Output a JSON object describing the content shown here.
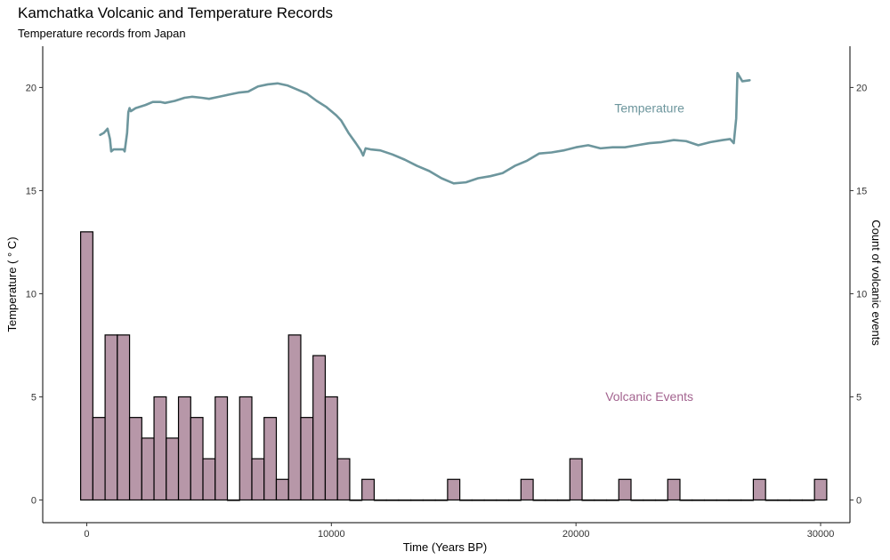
{
  "chart_data": {
    "type": "bar+line",
    "title": "Kamchatka  Volcanic and Temperature Records",
    "subtitle": "Temperature records from Japan",
    "xlabel": "Time (Years BP)",
    "ylabel_left": "Temperature ( ° C)",
    "ylabel_right": "Count of volcanic events",
    "xlim": [
      -1800,
      31200
    ],
    "ylim": [
      -1.1,
      22
    ],
    "x_ticks": [
      0,
      10000,
      20000,
      30000
    ],
    "y_ticks": [
      0,
      5,
      10,
      15,
      20
    ],
    "grid": false,
    "annotations": [
      {
        "text": "Temperature",
        "x": 23000,
        "y": 18.8,
        "color": "#6d969d"
      },
      {
        "text": "Volcanic Events",
        "x": 23000,
        "y": 4.8,
        "color": "#a3638f"
      }
    ],
    "bar_series": {
      "name": "Volcanic Events",
      "color": "#b797a8",
      "bin_width": 500,
      "bins": [
        {
          "x": 0,
          "count": 13
        },
        {
          "x": 500,
          "count": 4
        },
        {
          "x": 1000,
          "count": 8
        },
        {
          "x": 1500,
          "count": 8
        },
        {
          "x": 2000,
          "count": 4
        },
        {
          "x": 2500,
          "count": 3
        },
        {
          "x": 3000,
          "count": 5
        },
        {
          "x": 3500,
          "count": 3
        },
        {
          "x": 4000,
          "count": 5
        },
        {
          "x": 4500,
          "count": 4
        },
        {
          "x": 5000,
          "count": 2
        },
        {
          "x": 5500,
          "count": 5
        },
        {
          "x": 6000,
          "count": 0
        },
        {
          "x": 6500,
          "count": 5
        },
        {
          "x": 7000,
          "count": 2
        },
        {
          "x": 7500,
          "count": 4
        },
        {
          "x": 8000,
          "count": 1
        },
        {
          "x": 8500,
          "count": 8
        },
        {
          "x": 9000,
          "count": 4
        },
        {
          "x": 9500,
          "count": 7
        },
        {
          "x": 10000,
          "count": 5
        },
        {
          "x": 10500,
          "count": 2
        },
        {
          "x": 11000,
          "count": 0
        },
        {
          "x": 11500,
          "count": 1
        },
        {
          "x": 12000,
          "count": 0
        },
        {
          "x": 12500,
          "count": 0
        },
        {
          "x": 13000,
          "count": 0
        },
        {
          "x": 13500,
          "count": 0
        },
        {
          "x": 14000,
          "count": 0
        },
        {
          "x": 14500,
          "count": 0
        },
        {
          "x": 15000,
          "count": 1
        },
        {
          "x": 15500,
          "count": 0
        },
        {
          "x": 16000,
          "count": 0
        },
        {
          "x": 16500,
          "count": 0
        },
        {
          "x": 17000,
          "count": 0
        },
        {
          "x": 17500,
          "count": 0
        },
        {
          "x": 18000,
          "count": 1
        },
        {
          "x": 18500,
          "count": 0
        },
        {
          "x": 19000,
          "count": 0
        },
        {
          "x": 19500,
          "count": 0
        },
        {
          "x": 20000,
          "count": 2
        },
        {
          "x": 20500,
          "count": 0
        },
        {
          "x": 21000,
          "count": 0
        },
        {
          "x": 21500,
          "count": 0
        },
        {
          "x": 22000,
          "count": 1
        },
        {
          "x": 22500,
          "count": 0
        },
        {
          "x": 23000,
          "count": 0
        },
        {
          "x": 23500,
          "count": 0
        },
        {
          "x": 24000,
          "count": 1
        },
        {
          "x": 24500,
          "count": 0
        },
        {
          "x": 25000,
          "count": 0
        },
        {
          "x": 25500,
          "count": 0
        },
        {
          "x": 26000,
          "count": 0
        },
        {
          "x": 26500,
          "count": 0
        },
        {
          "x": 27000,
          "count": 0
        },
        {
          "x": 27500,
          "count": 1
        },
        {
          "x": 28000,
          "count": 0
        },
        {
          "x": 28500,
          "count": 0
        },
        {
          "x": 29000,
          "count": 0
        },
        {
          "x": 29500,
          "count": 0
        },
        {
          "x": 30000,
          "count": 1
        }
      ]
    },
    "line_series": {
      "name": "Temperature",
      "color": "#6d969d",
      "points": [
        [
          550,
          17.7
        ],
        [
          700,
          17.8
        ],
        [
          850,
          18.0
        ],
        [
          950,
          17.5
        ],
        [
          1000,
          16.9
        ],
        [
          1100,
          17.0
        ],
        [
          1300,
          17.0
        ],
        [
          1500,
          17.0
        ],
        [
          1550,
          16.9
        ],
        [
          1650,
          17.8
        ],
        [
          1700,
          18.8
        ],
        [
          1750,
          19.0
        ],
        [
          1800,
          18.85
        ],
        [
          2000,
          19.0
        ],
        [
          2400,
          19.15
        ],
        [
          2700,
          19.3
        ],
        [
          3000,
          19.3
        ],
        [
          3200,
          19.25
        ],
        [
          3600,
          19.35
        ],
        [
          4000,
          19.5
        ],
        [
          4300,
          19.55
        ],
        [
          4700,
          19.5
        ],
        [
          5000,
          19.45
        ],
        [
          5400,
          19.55
        ],
        [
          5800,
          19.65
        ],
        [
          6200,
          19.75
        ],
        [
          6600,
          19.8
        ],
        [
          7000,
          20.05
        ],
        [
          7400,
          20.15
        ],
        [
          7800,
          20.2
        ],
        [
          8200,
          20.1
        ],
        [
          8600,
          19.9
        ],
        [
          9000,
          19.7
        ],
        [
          9400,
          19.35
        ],
        [
          9800,
          19.05
        ],
        [
          10200,
          18.65
        ],
        [
          10400,
          18.4
        ],
        [
          10700,
          17.8
        ],
        [
          11000,
          17.3
        ],
        [
          11200,
          16.95
        ],
        [
          11300,
          16.7
        ],
        [
          11400,
          17.05
        ],
        [
          11600,
          17.0
        ],
        [
          12000,
          16.95
        ],
        [
          12500,
          16.75
        ],
        [
          13000,
          16.5
        ],
        [
          13500,
          16.2
        ],
        [
          14000,
          15.95
        ],
        [
          14500,
          15.6
        ],
        [
          15000,
          15.35
        ],
        [
          15500,
          15.4
        ],
        [
          16000,
          15.6
        ],
        [
          16500,
          15.7
        ],
        [
          17000,
          15.85
        ],
        [
          17500,
          16.2
        ],
        [
          18000,
          16.45
        ],
        [
          18500,
          16.8
        ],
        [
          19000,
          16.85
        ],
        [
          19500,
          16.95
        ],
        [
          20000,
          17.1
        ],
        [
          20500,
          17.2
        ],
        [
          21000,
          17.05
        ],
        [
          21500,
          17.1
        ],
        [
          22000,
          17.1
        ],
        [
          22500,
          17.2
        ],
        [
          23000,
          17.3
        ],
        [
          23500,
          17.35
        ],
        [
          24000,
          17.45
        ],
        [
          24500,
          17.4
        ],
        [
          25000,
          17.2
        ],
        [
          25500,
          17.35
        ],
        [
          26000,
          17.45
        ],
        [
          26300,
          17.5
        ],
        [
          26450,
          17.3
        ],
        [
          26550,
          18.5
        ],
        [
          26600,
          20.7
        ],
        [
          26700,
          20.5
        ],
        [
          26800,
          20.3
        ],
        [
          27100,
          20.35
        ]
      ]
    }
  }
}
